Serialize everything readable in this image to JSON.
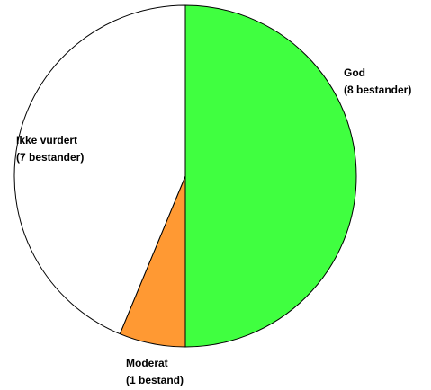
{
  "chart_data": {
    "type": "pie",
    "categories": [
      "God",
      "Moderat",
      "Ikke vurdert"
    ],
    "values": [
      8,
      1,
      7
    ],
    "value_labels": [
      "(8 bestander)",
      "(1 bestand)",
      "(7 bestander)"
    ],
    "colors": [
      "#40ff40",
      "#ff9933",
      "#ffffff"
    ]
  }
}
